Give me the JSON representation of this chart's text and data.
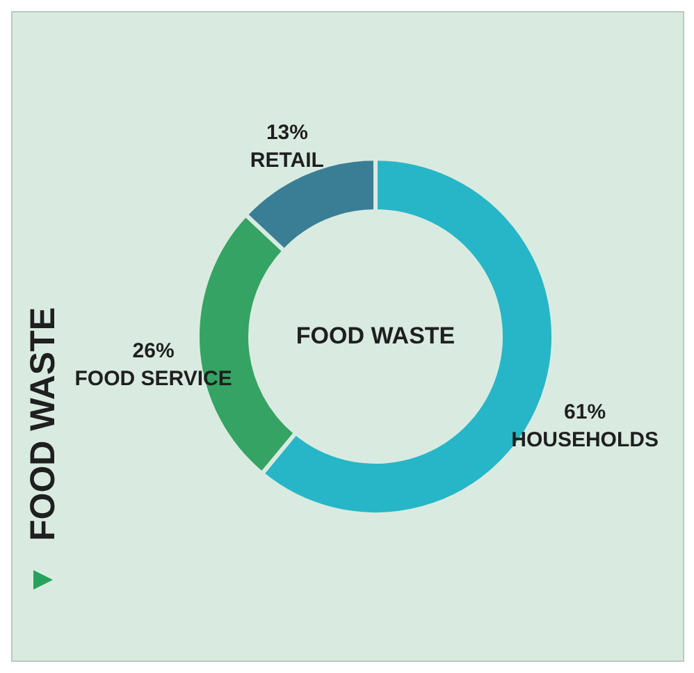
{
  "chart_data": {
    "type": "donut",
    "title": "FOOD WASTE",
    "categories": [
      "HOUSEHOLDS",
      "FOOD SERVICE",
      "RETAIL"
    ],
    "values": [
      61,
      26,
      13
    ],
    "value_labels": [
      "61%",
      "26%",
      "13%"
    ],
    "colors": [
      "#27b6c7",
      "#35a363",
      "#3a7e95"
    ],
    "annotations": [
      "FOOD WASTE"
    ],
    "legend": false
  }
}
